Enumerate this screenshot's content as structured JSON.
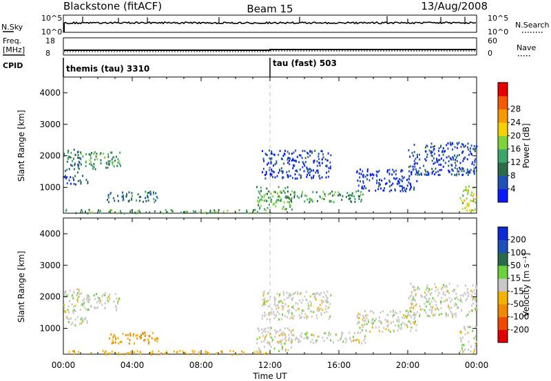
{
  "header": {
    "station": "Blackstone (fitACF)",
    "beam": "Beam 15",
    "date": "13/Aug/2008"
  },
  "left_labels": {
    "nsky": "N.Sky",
    "freq_line1": "Freq.",
    "freq_line2": "[MHz]",
    "cpid": "CPID"
  },
  "right_labels": {
    "nsearch": "N.Search",
    "nave": "Nave"
  },
  "nsky_axis": {
    "top": "10^5",
    "bottom": "10^0"
  },
  "nsearch_axis": {
    "top": "10^5",
    "bottom": "10^0"
  },
  "freq_axis": {
    "top": "18",
    "bottom": "8"
  },
  "nave_axis": {
    "top": "60",
    "bottom": "0"
  },
  "cpid_segments": [
    {
      "label": "themis (tau) 3310",
      "start_hour": 0
    },
    {
      "label": "tau (fast) 503",
      "start_hour": 12
    }
  ],
  "colors": {
    "power_scale": [
      "#0a1aff",
      "#1f4fb8",
      "#2b6a4a",
      "#3ca66a",
      "#7fd23a",
      "#f5d200",
      "#f59a00",
      "#f55a00",
      "#e80000"
    ],
    "velocity_scale": [
      "#e00000",
      "#ef4a00",
      "#f08a00",
      "#f2b400",
      "#c8c8c8",
      "#c8c8c8",
      "#6cd23a",
      "#2a6a4a",
      "#1f4fb8",
      "#1029d8"
    ],
    "dashed_line": "#c0c0c0"
  },
  "chart_data": [
    {
      "type": "heatmap",
      "panel": "power",
      "xlabel": "",
      "ylabel": "Slant Range [km]",
      "xlim_hours": [
        0,
        24
      ],
      "ylim": [
        180,
        4500
      ],
      "yticks": [
        "1000",
        "2000",
        "3000",
        "4000"
      ],
      "colorbar": {
        "label": "Power [dB]",
        "range": [
          0,
          32
        ],
        "tick_values": [
          4,
          8,
          12,
          16,
          20,
          24,
          28
        ],
        "tick_labels": [
          "4",
          "8",
          "12",
          "16",
          "20",
          "24",
          "28"
        ]
      },
      "scatter_regions": [
        {
          "t": [
            0.0,
            1.0
          ],
          "r": [
            1500,
            2300
          ],
          "level": 10
        },
        {
          "t": [
            1.0,
            3.3
          ],
          "r": [
            1600,
            2150
          ],
          "level": 13
        },
        {
          "t": [
            0.0,
            1.4
          ],
          "r": [
            1100,
            1400
          ],
          "level": 7
        },
        {
          "t": [
            2.5,
            5.5
          ],
          "r": [
            550,
            900
          ],
          "level": 9
        },
        {
          "t": [
            0.0,
            12.0
          ],
          "r": [
            200,
            320
          ],
          "level": 14
        },
        {
          "t": [
            11.2,
            13.3
          ],
          "r": [
            300,
            1050
          ],
          "level": 15
        },
        {
          "t": [
            13.0,
            17.5
          ],
          "r": [
            550,
            900
          ],
          "level": 13
        },
        {
          "t": [
            11.5,
            15.5
          ],
          "r": [
            1300,
            2200
          ],
          "level": 5
        },
        {
          "t": [
            17.0,
            20.5
          ],
          "r": [
            900,
            1600
          ],
          "level": 4
        },
        {
          "t": [
            20.0,
            24.0
          ],
          "r": [
            1400,
            2450
          ],
          "level": 6
        },
        {
          "t": [
            23.0,
            24.0
          ],
          "r": [
            250,
            1100
          ],
          "level": 20
        }
      ]
    },
    {
      "type": "heatmap",
      "panel": "velocity",
      "xlabel": "Time UT",
      "ylabel": "Slant Range [km]",
      "xlim_hours": [
        0,
        24
      ],
      "ylim": [
        180,
        4500
      ],
      "yticks": [
        "1000",
        "2000",
        "3000",
        "4000"
      ],
      "xtick_labels": [
        "00:00",
        "04:00",
        "08:00",
        "12:00",
        "16:00",
        "20:00",
        "00:00"
      ],
      "colorbar": {
        "label": "Velocity [m s⁻¹]",
        "range": [
          -250,
          250
        ],
        "tick_labels": [
          "200",
          "100",
          "50",
          "15",
          "-15",
          "-50",
          "-100",
          "-200"
        ]
      },
      "scatter_regions": [
        {
          "t": [
            0.0,
            1.0
          ],
          "r": [
            1500,
            2300
          ],
          "level": 0
        },
        {
          "t": [
            1.0,
            3.3
          ],
          "r": [
            1600,
            2150
          ],
          "level": 0
        },
        {
          "t": [
            0.0,
            1.4
          ],
          "r": [
            1100,
            1400
          ],
          "level": 0
        },
        {
          "t": [
            2.5,
            5.5
          ],
          "r": [
            550,
            900
          ],
          "level": -60
        },
        {
          "t": [
            0.0,
            12.0
          ],
          "r": [
            200,
            320
          ],
          "level": -40
        },
        {
          "t": [
            11.2,
            13.3
          ],
          "r": [
            300,
            1050
          ],
          "level": 0
        },
        {
          "t": [
            13.0,
            17.5
          ],
          "r": [
            550,
            900
          ],
          "level": 0
        },
        {
          "t": [
            11.5,
            15.5
          ],
          "r": [
            1300,
            2200
          ],
          "level": 0
        },
        {
          "t": [
            17.0,
            20.5
          ],
          "r": [
            900,
            1600
          ],
          "level": 0
        },
        {
          "t": [
            20.0,
            24.0
          ],
          "r": [
            1400,
            2450
          ],
          "level": 0
        },
        {
          "t": [
            23.0,
            24.0
          ],
          "r": [
            250,
            1100
          ],
          "level": 0
        }
      ]
    }
  ]
}
